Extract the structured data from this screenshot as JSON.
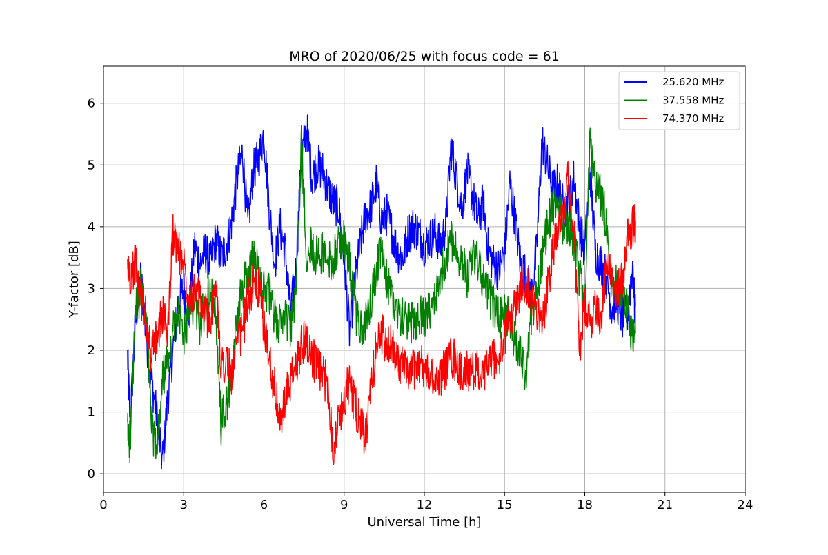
{
  "chart_data": {
    "type": "line",
    "title": "MRO of 2020/06/25 with focus code = 61",
    "xlabel": "Universal Time [h]",
    "ylabel": "Y-factor [dB]",
    "xlim": [
      0,
      24
    ],
    "ylim": [
      -0.3,
      6.6
    ],
    "xticks": [
      0,
      3,
      6,
      9,
      12,
      15,
      18,
      21,
      24
    ],
    "yticks": [
      0,
      1,
      2,
      3,
      4,
      5,
      6
    ],
    "grid": true,
    "legend_position": "upper right",
    "series": [
      {
        "name": "25.620 MHz",
        "color": "#0000ff",
        "x": [
          0.9,
          1.0,
          1.2,
          1.4,
          1.6,
          1.8,
          2.0,
          2.2,
          2.4,
          2.6,
          2.8,
          3.0,
          3.2,
          3.4,
          3.6,
          3.8,
          4.0,
          4.2,
          4.4,
          4.6,
          4.8,
          5.0,
          5.2,
          5.4,
          5.6,
          5.8,
          6.0,
          6.2,
          6.4,
          6.6,
          6.8,
          7.0,
          7.2,
          7.4,
          7.6,
          7.8,
          8.0,
          8.2,
          8.4,
          8.6,
          8.8,
          9.0,
          9.2,
          9.4,
          9.6,
          9.8,
          10.0,
          10.2,
          10.4,
          10.6,
          10.8,
          11.0,
          11.2,
          11.4,
          11.6,
          11.8,
          12.0,
          12.2,
          12.4,
          12.6,
          12.8,
          13.0,
          13.2,
          13.4,
          13.6,
          13.8,
          14.0,
          14.2,
          14.4,
          14.6,
          14.8,
          15.0,
          15.2,
          15.4,
          15.6,
          15.8,
          16.0,
          16.2,
          16.4,
          16.6,
          16.8,
          17.0,
          17.2,
          17.4,
          17.6,
          17.8,
          18.0,
          18.2,
          18.4,
          18.6,
          18.8,
          19.0,
          19.2,
          19.4,
          19.6,
          19.8,
          19.9
        ],
        "values": [
          1.9,
          0.8,
          2.5,
          3.2,
          2.2,
          1.5,
          0.9,
          0.2,
          1.2,
          2.0,
          2.8,
          3.0,
          2.6,
          3.7,
          3.4,
          3.6,
          3.4,
          3.8,
          3.5,
          3.7,
          4.1,
          4.8,
          5.2,
          4.0,
          4.9,
          5.1,
          5.5,
          4.3,
          3.4,
          4.0,
          3.6,
          2.6,
          3.3,
          5.1,
          5.6,
          4.8,
          5.0,
          4.9,
          4.6,
          4.4,
          4.3,
          3.5,
          2.3,
          3.1,
          3.7,
          4.2,
          4.3,
          4.7,
          4.1,
          4.2,
          3.9,
          3.6,
          3.5,
          3.9,
          4.0,
          3.9,
          3.7,
          3.8,
          3.9,
          3.7,
          4.0,
          5.3,
          4.8,
          4.3,
          4.9,
          4.5,
          4.1,
          4.4,
          3.6,
          3.4,
          3.3,
          3.6,
          4.7,
          4.1,
          3.4,
          3.2,
          2.9,
          3.6,
          5.4,
          5.0,
          4.6,
          4.7,
          4.3,
          4.4,
          4.8,
          4.0,
          3.6,
          4.9,
          3.6,
          3.4,
          3.2,
          2.7,
          2.8,
          2.5,
          2.6,
          3.4,
          2.3
        ]
      },
      {
        "name": "37.558 MHz",
        "color": "#008000",
        "x": [
          0.9,
          1.0,
          1.2,
          1.4,
          1.6,
          1.8,
          2.0,
          2.2,
          2.4,
          2.6,
          2.8,
          3.0,
          3.2,
          3.4,
          3.6,
          3.8,
          4.0,
          4.2,
          4.4,
          4.6,
          4.8,
          5.0,
          5.2,
          5.4,
          5.6,
          5.8,
          6.0,
          6.2,
          6.4,
          6.6,
          6.8,
          7.0,
          7.2,
          7.4,
          7.6,
          7.8,
          8.0,
          8.2,
          8.4,
          8.6,
          8.8,
          9.0,
          9.2,
          9.4,
          9.6,
          9.8,
          10.0,
          10.2,
          10.4,
          10.6,
          10.8,
          11.0,
          11.2,
          11.4,
          11.6,
          11.8,
          12.0,
          12.2,
          12.4,
          12.6,
          12.8,
          13.0,
          13.2,
          13.4,
          13.6,
          13.8,
          14.0,
          14.2,
          14.4,
          14.6,
          14.8,
          15.0,
          15.2,
          15.4,
          15.6,
          15.8,
          16.0,
          16.2,
          16.4,
          16.6,
          16.8,
          17.0,
          17.2,
          17.4,
          17.6,
          17.8,
          18.0,
          18.2,
          18.4,
          18.6,
          18.8,
          19.0,
          19.2,
          19.4,
          19.6,
          19.8,
          19.9
        ],
        "values": [
          0.7,
          0.5,
          2.6,
          3.0,
          2.5,
          0.8,
          0.3,
          1.5,
          1.8,
          2.3,
          2.6,
          2.2,
          2.6,
          2.8,
          2.4,
          2.7,
          3.1,
          2.4,
          0.8,
          1.1,
          1.5,
          2.6,
          3.0,
          3.2,
          3.5,
          3.3,
          3.0,
          2.9,
          2.5,
          2.4,
          2.6,
          2.3,
          3.0,
          5.3,
          3.6,
          3.7,
          3.5,
          3.6,
          3.4,
          3.5,
          3.7,
          3.8,
          3.4,
          2.7,
          2.3,
          2.4,
          2.8,
          3.3,
          3.6,
          3.1,
          2.9,
          2.6,
          2.5,
          2.5,
          2.4,
          2.6,
          2.5,
          2.6,
          2.8,
          3.2,
          3.5,
          3.8,
          3.6,
          3.5,
          3.2,
          3.6,
          3.4,
          3.1,
          2.9,
          2.7,
          2.5,
          2.6,
          2.5,
          2.1,
          1.9,
          1.6,
          2.6,
          2.9,
          3.5,
          4.0,
          4.3,
          4.4,
          4.0,
          4.1,
          3.7,
          3.2,
          2.8,
          5.4,
          4.6,
          4.5,
          4.1,
          3.0,
          3.1,
          2.8,
          2.6,
          2.2,
          2.7
        ]
      },
      {
        "name": "74.370 MHz",
        "color": "#ff0000",
        "x": [
          0.9,
          1.0,
          1.2,
          1.4,
          1.6,
          1.8,
          2.0,
          2.2,
          2.4,
          2.6,
          2.8,
          3.0,
          3.2,
          3.4,
          3.6,
          3.8,
          4.0,
          4.2,
          4.4,
          4.6,
          4.8,
          5.0,
          5.2,
          5.4,
          5.6,
          5.8,
          6.0,
          6.2,
          6.4,
          6.6,
          6.8,
          7.0,
          7.2,
          7.4,
          7.6,
          7.8,
          8.0,
          8.2,
          8.4,
          8.6,
          8.8,
          9.0,
          9.2,
          9.4,
          9.6,
          9.8,
          10.0,
          10.2,
          10.4,
          10.6,
          10.8,
          11.0,
          11.2,
          11.4,
          11.6,
          11.8,
          12.0,
          12.2,
          12.4,
          12.6,
          12.8,
          13.0,
          13.2,
          13.4,
          13.6,
          13.8,
          14.0,
          14.2,
          14.4,
          14.6,
          14.8,
          15.0,
          15.2,
          15.4,
          15.6,
          15.8,
          16.0,
          16.2,
          16.4,
          16.6,
          16.8,
          17.0,
          17.2,
          17.4,
          17.6,
          17.8,
          18.0,
          18.2,
          18.4,
          18.6,
          18.8,
          19.0,
          19.2,
          19.4,
          19.6,
          19.8,
          19.9
        ],
        "values": [
          3.3,
          3.2,
          3.4,
          2.8,
          2.5,
          1.9,
          2.2,
          2.6,
          2.3,
          3.9,
          3.6,
          3.4,
          2.9,
          3.0,
          2.8,
          2.6,
          2.5,
          3.0,
          1.8,
          1.8,
          1.6,
          2.1,
          2.3,
          2.8,
          3.1,
          3.0,
          2.4,
          1.9,
          1.4,
          0.8,
          1.2,
          1.5,
          1.7,
          2.1,
          2.2,
          1.9,
          1.7,
          1.6,
          1.4,
          0.4,
          0.9,
          1.2,
          1.5,
          1.1,
          0.8,
          0.6,
          1.3,
          2.1,
          2.3,
          2.0,
          2.1,
          1.9,
          1.7,
          1.6,
          1.7,
          1.8,
          1.7,
          1.6,
          1.5,
          1.6,
          1.7,
          1.9,
          1.8,
          1.6,
          1.7,
          1.6,
          1.7,
          1.5,
          1.8,
          1.9,
          1.8,
          2.2,
          2.5,
          2.7,
          3.0,
          3.1,
          2.9,
          2.6,
          2.4,
          3.0,
          3.6,
          4.1,
          4.3,
          4.8,
          3.9,
          2.0,
          2.7,
          2.4,
          2.8,
          2.5,
          3.3,
          3.2,
          3.0,
          3.1,
          3.8,
          4.0,
          4.1
        ]
      }
    ]
  }
}
